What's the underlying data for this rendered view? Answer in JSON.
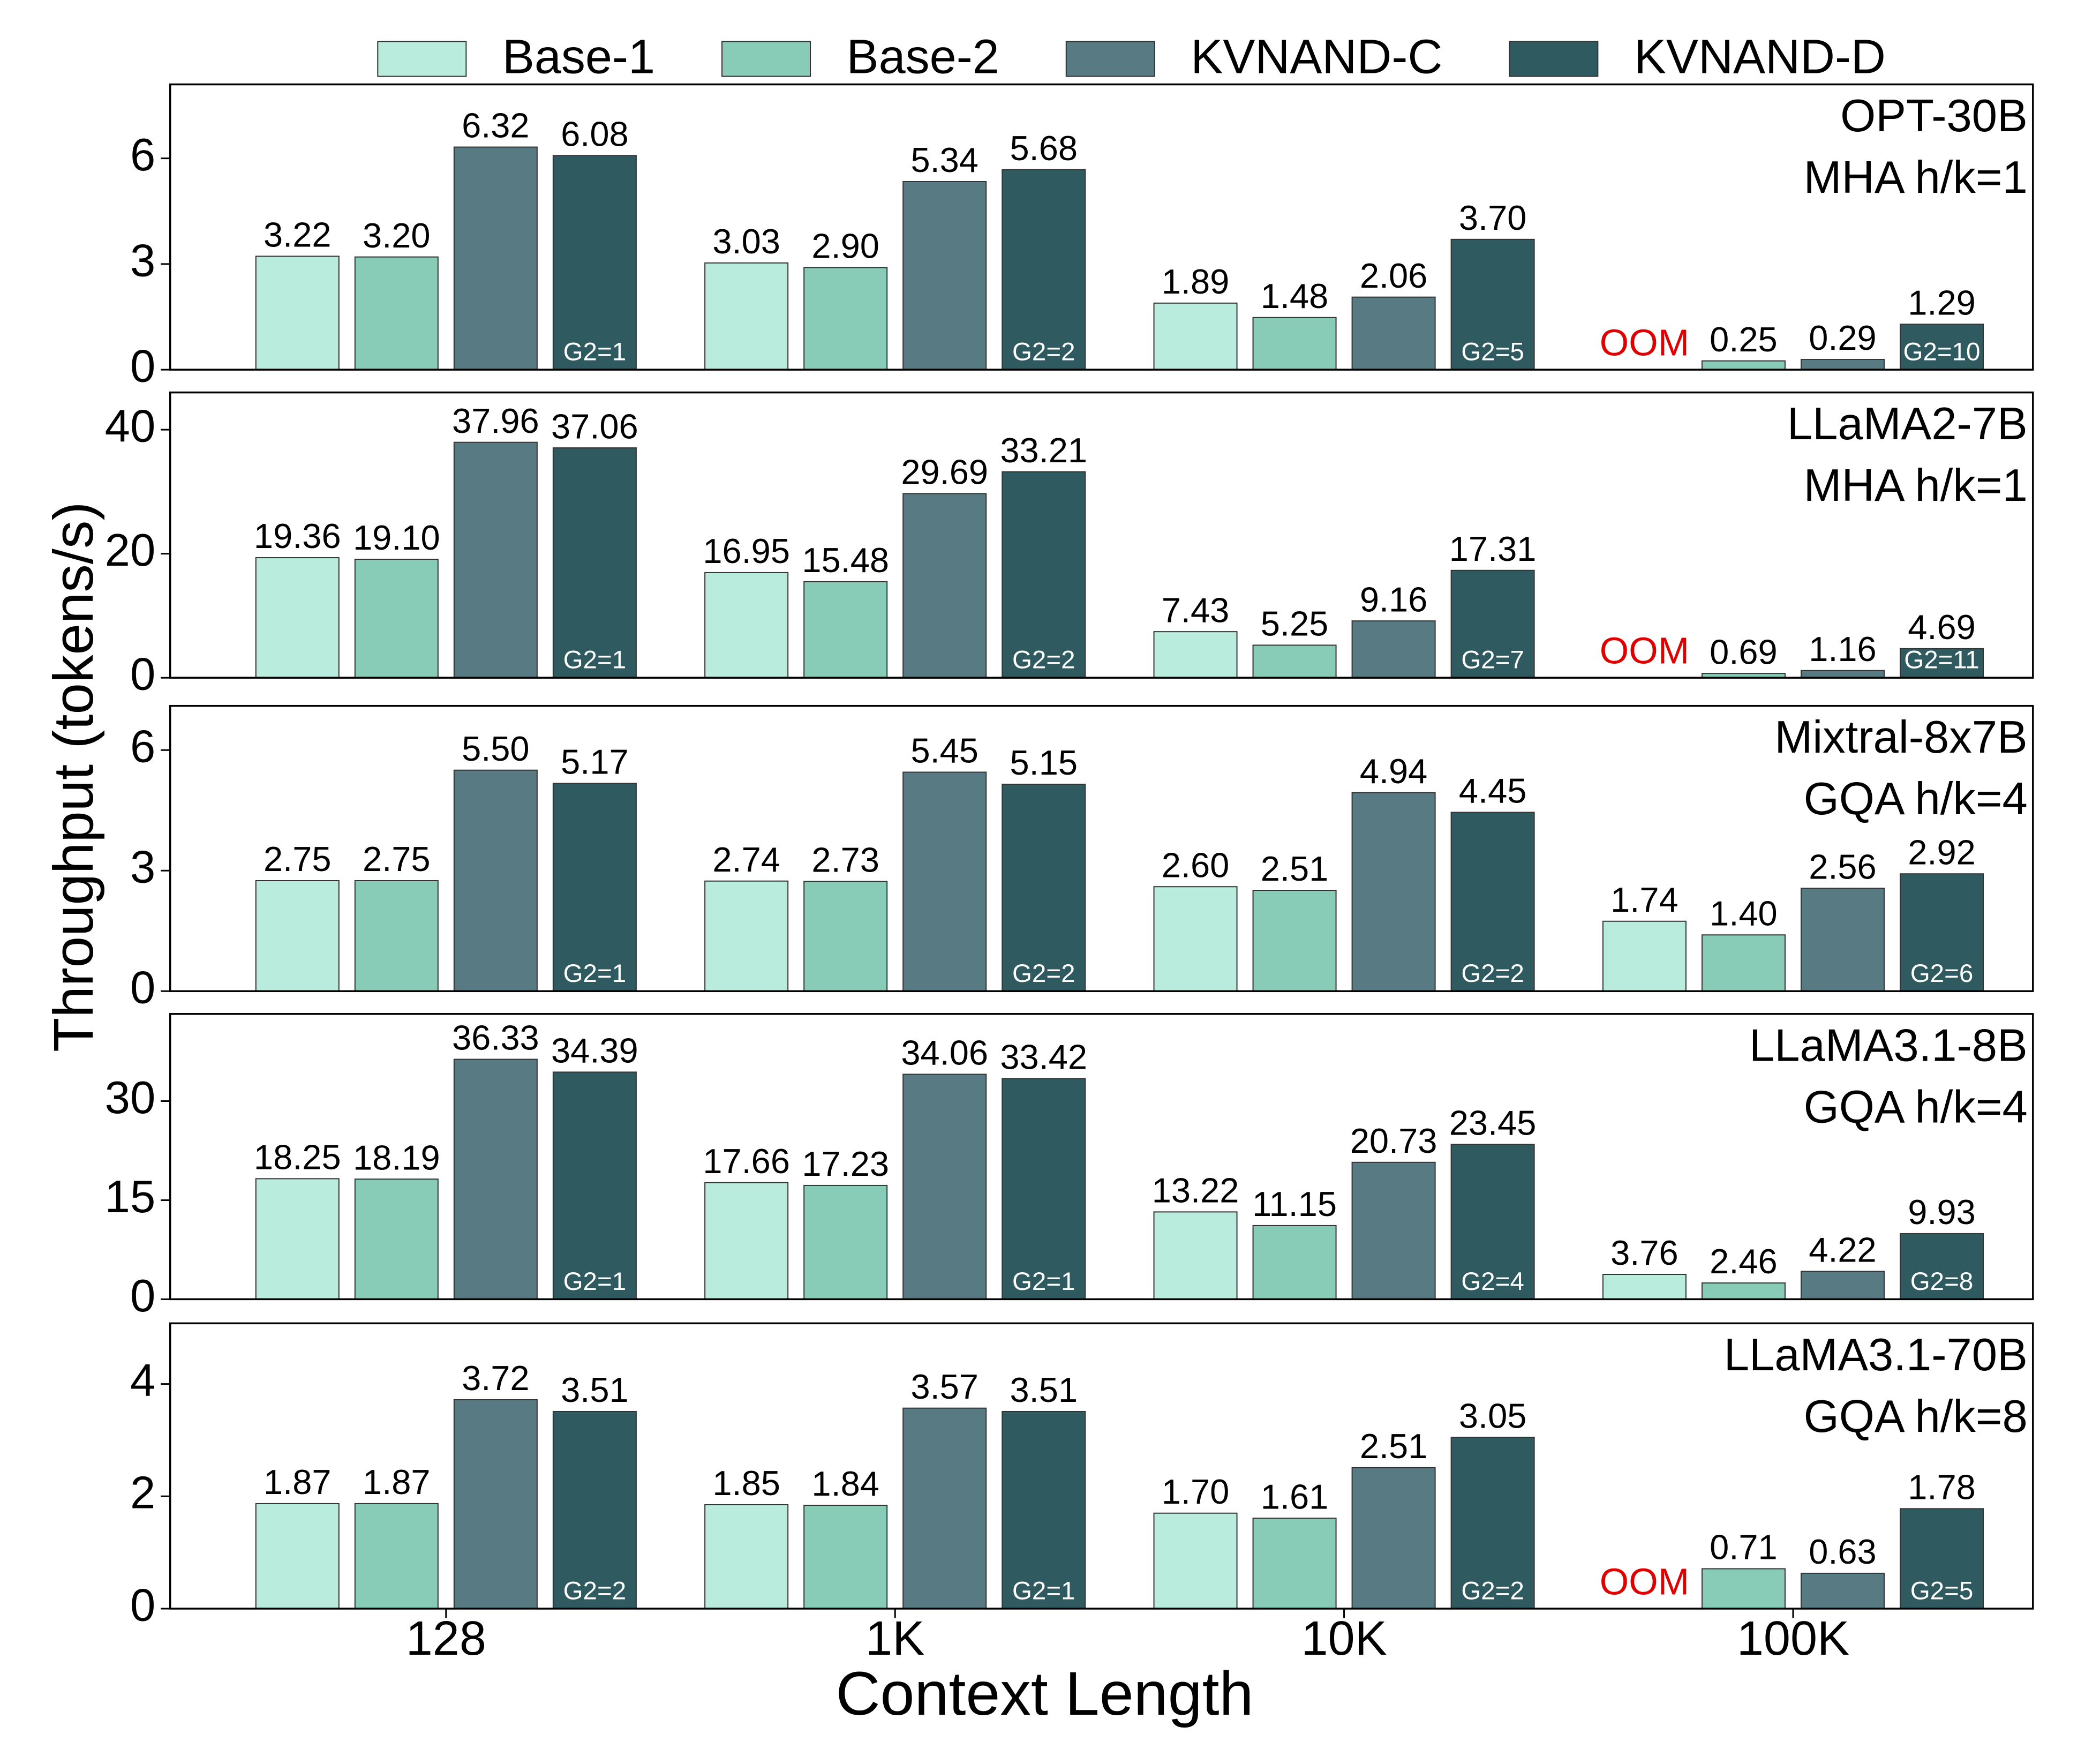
{
  "chart_data": {
    "type": "bar",
    "xlabel": "Context Length",
    "ylabel": "Throughput (tokens/s)",
    "categories": [
      "128",
      "1K",
      "10K",
      "100K"
    ],
    "series": [
      {
        "name": "Base-1",
        "color": "#b9ecdd"
      },
      {
        "name": "Base-2",
        "color": "#88cbb7"
      },
      {
        "name": "KVNAND-C",
        "color": "#587b83"
      },
      {
        "name": "KVNAND-D",
        "color": "#2f5a5f"
      }
    ],
    "panels": [
      {
        "title": [
          "OPT-30B",
          "MHA h/k=1"
        ],
        "ylim": [
          0,
          8.1
        ],
        "yticks": [
          0,
          3,
          6
        ],
        "missing_label": "OOM",
        "group_labels": [
          "G2=1",
          "G2=2",
          "G2=5",
          "G2=10"
        ],
        "series": [
          {
            "values": [
              3.22,
              3.03,
              1.89,
              null
            ],
            "value_labels": [
              "3.22",
              "3.03",
              "1.89",
              null
            ]
          },
          {
            "values": [
              3.2,
              2.9,
              1.48,
              0.25
            ],
            "value_labels": [
              "3.20",
              "2.90",
              "1.48",
              "0.25"
            ]
          },
          {
            "values": [
              6.32,
              5.34,
              2.06,
              0.29
            ],
            "value_labels": [
              "6.32",
              "5.34",
              "2.06",
              "0.29"
            ]
          },
          {
            "values": [
              6.08,
              5.68,
              3.7,
              1.29
            ],
            "value_labels": [
              "6.08",
              "5.68",
              "3.70",
              "1.29"
            ]
          }
        ]
      },
      {
        "title": [
          "LLaMA2-7B",
          "MHA h/k=1"
        ],
        "ylim": [
          0,
          46
        ],
        "yticks": [
          0,
          20,
          40
        ],
        "missing_label": "OOM",
        "group_labels": [
          "G2=1",
          "G2=2",
          "G2=7",
          "G2=11"
        ],
        "series": [
          {
            "values": [
              19.36,
              16.95,
              7.43,
              null
            ],
            "value_labels": [
              "19.36",
              "16.95",
              "7.43",
              null
            ]
          },
          {
            "values": [
              19.1,
              15.48,
              5.25,
              0.69
            ],
            "value_labels": [
              "19.10",
              "15.48",
              "5.25",
              "0.69"
            ]
          },
          {
            "values": [
              37.96,
              29.69,
              9.16,
              1.16
            ],
            "value_labels": [
              "37.96",
              "29.69",
              "9.16",
              "1.16"
            ]
          },
          {
            "values": [
              37.06,
              33.21,
              17.31,
              4.69
            ],
            "value_labels": [
              "37.06",
              "33.21",
              "17.31",
              "4.69"
            ]
          }
        ]
      },
      {
        "title": [
          "Mixtral-8x7B",
          "GQA h/k=4"
        ],
        "ylim": [
          0,
          7.1
        ],
        "yticks": [
          0,
          3,
          6
        ],
        "group_labels": [
          "G2=1",
          "G2=2",
          "G2=2",
          "G2=6"
        ],
        "series": [
          {
            "values": [
              2.75,
              2.74,
              2.6,
              1.74
            ],
            "value_labels": [
              "2.75",
              "2.74",
              "2.60",
              "1.74"
            ]
          },
          {
            "values": [
              2.75,
              2.73,
              2.51,
              1.4
            ],
            "value_labels": [
              "2.75",
              "2.73",
              "2.51",
              "1.40"
            ]
          },
          {
            "values": [
              5.5,
              5.45,
              4.94,
              2.56
            ],
            "value_labels": [
              "5.50",
              "5.45",
              "4.94",
              "2.56"
            ]
          },
          {
            "values": [
              5.17,
              5.15,
              4.45,
              2.92
            ],
            "value_labels": [
              "5.17",
              "5.15",
              "4.45",
              "2.92"
            ]
          }
        ]
      },
      {
        "title": [
          "LLaMA3.1-8B",
          "GQA h/k=4"
        ],
        "ylim": [
          0,
          43.2
        ],
        "yticks": [
          0,
          15,
          30
        ],
        "group_labels": [
          "G2=1",
          "G2=1",
          "G2=4",
          "G2=8"
        ],
        "series": [
          {
            "values": [
              18.25,
              17.66,
              13.22,
              3.76
            ],
            "value_labels": [
              "18.25",
              "17.66",
              "13.22",
              "3.76"
            ]
          },
          {
            "values": [
              18.19,
              17.23,
              11.15,
              2.46
            ],
            "value_labels": [
              "18.19",
              "17.23",
              "11.15",
              "2.46"
            ]
          },
          {
            "values": [
              36.33,
              34.06,
              20.73,
              4.22
            ],
            "value_labels": [
              "36.33",
              "34.06",
              "20.73",
              "4.22"
            ]
          },
          {
            "values": [
              34.39,
              33.42,
              23.45,
              9.93
            ],
            "value_labels": [
              "34.39",
              "33.42",
              "23.45",
              "9.93"
            ]
          }
        ]
      },
      {
        "title": [
          "LLaMA3.1-70B",
          "GQA h/k=8"
        ],
        "ylim": [
          0,
          5.08
        ],
        "yticks": [
          0,
          2,
          4
        ],
        "missing_label": "OOM",
        "group_labels": [
          "G2=2",
          "G2=1",
          "G2=2",
          "G2=5"
        ],
        "series": [
          {
            "values": [
              1.87,
              1.85,
              1.7,
              null
            ],
            "value_labels": [
              "1.87",
              "1.85",
              "1.70",
              null
            ]
          },
          {
            "values": [
              1.87,
              1.84,
              1.61,
              0.71
            ],
            "value_labels": [
              "1.87",
              "1.84",
              "1.61",
              "0.71"
            ]
          },
          {
            "values": [
              3.72,
              3.57,
              2.51,
              0.63
            ],
            "value_labels": [
              "3.72",
              "3.57",
              "2.51",
              "0.63"
            ]
          },
          {
            "values": [
              3.51,
              3.51,
              3.05,
              1.78
            ],
            "value_labels": [
              "3.51",
              "3.51",
              "3.05",
              "1.78"
            ]
          }
        ]
      }
    ]
  }
}
